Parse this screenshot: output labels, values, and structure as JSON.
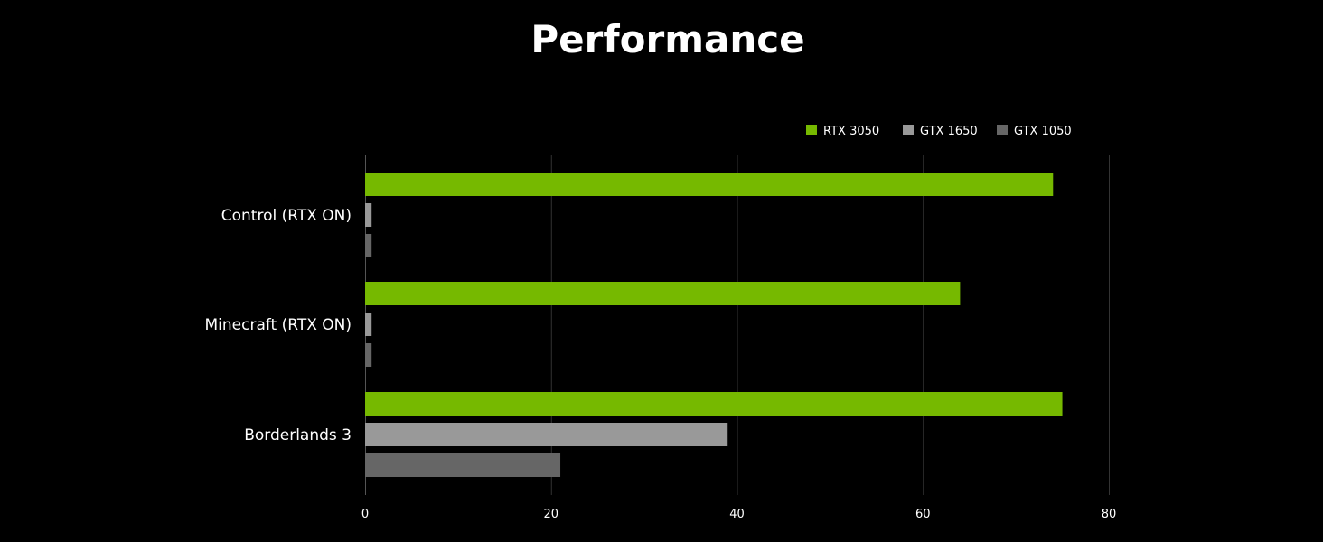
{
  "chart_data": {
    "type": "bar",
    "orientation": "horizontal",
    "title": "Performance",
    "xlabel": "",
    "ylabel": "",
    "categories": [
      "Control (RTX ON)",
      "Minecraft (RTX ON)",
      "Borderlands 3"
    ],
    "series": [
      {
        "name": "RTX 3050",
        "color": "#76b900",
        "values": [
          74,
          64,
          75
        ]
      },
      {
        "name": "GTX 1650",
        "color": "#999999",
        "values": [
          0.7,
          0.7,
          39
        ]
      },
      {
        "name": "GTX 1050",
        "color": "#666666",
        "values": [
          0.7,
          0.7,
          21
        ]
      }
    ],
    "xlim": [
      0,
      80
    ],
    "xticks": [
      0,
      20,
      40,
      60,
      80
    ],
    "grid": "vertical",
    "legend_position": "top-right"
  }
}
